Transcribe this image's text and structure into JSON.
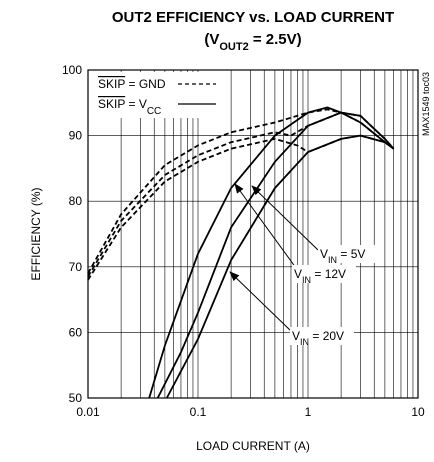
{
  "chart_data": {
    "type": "line",
    "title": "OUT2 EFFICIENCY vs. LOAD CURRENT",
    "subtitle": [
      {
        "text": "(V"
      },
      {
        "text": "OUT2",
        "sub": true
      },
      {
        "text": " = 2.5V)"
      }
    ],
    "x_label": "LOAD CURRENT (A)",
    "y_label": "EFFICIENCY (%)",
    "side_note": "MAX1549 toc03",
    "xscale": "log",
    "xlim": [
      0.01,
      10
    ],
    "xticks": [
      0.01,
      0.1,
      1,
      10
    ],
    "ylim": [
      50,
      100
    ],
    "yticks": [
      50,
      60,
      70,
      80,
      90,
      100
    ],
    "grid": true,
    "legend": "upper left",
    "series": [
      {
        "name": [
          {
            "text": "SKIP",
            "over": true
          },
          {
            "text": " = GND"
          }
        ],
        "dash": true,
        "color": "#000000",
        "lines": [
          {
            "x": [
              0.01,
              0.02,
              0.05,
              0.1,
              0.2,
              0.5,
              1,
              1.5,
              2,
              3,
              5,
              6
            ],
            "values": [
              69,
              78,
              85.5,
              88.5,
              90.5,
              92,
              93.5,
              94,
              93.5,
              92,
              89,
              88
            ]
          },
          {
            "x": [
              0.01,
              0.02,
              0.05,
              0.1,
              0.2,
              0.5,
              0.7,
              1,
              2,
              3,
              5,
              6
            ],
            "values": [
              68.5,
              77,
              84,
              87,
              89,
              90.5,
              90,
              91.5,
              93.5,
              93,
              89.5,
              88
            ]
          },
          {
            "x": [
              0.01,
              0.02,
              0.05,
              0.1,
              0.2,
              0.5,
              0.8,
              1,
              1.2,
              2,
              3,
              5,
              6
            ],
            "values": [
              68,
              76,
              83,
              86,
              88,
              89.5,
              88.5,
              87.5,
              88,
              89.5,
              90,
              89,
              88
            ]
          }
        ]
      },
      {
        "name": [
          {
            "text": "SKIP",
            "over": true
          },
          {
            "text": " = V"
          },
          {
            "text": "CC",
            "sub": true
          }
        ],
        "dash": false,
        "color": "#000000",
        "lines": [
          {
            "x": [
              0.036,
              0.05,
              0.1,
              0.2,
              0.5,
              1,
              1.5,
              2,
              3,
              5,
              6
            ],
            "values": [
              50,
              58,
              72,
              82,
              90,
              93.5,
              94.3,
              93.5,
              92,
              89,
              88
            ]
          },
          {
            "x": [
              0.043,
              0.07,
              0.1,
              0.2,
              0.5,
              1,
              2,
              3,
              5,
              6
            ],
            "values": [
              50,
              57,
              63,
              76,
              86,
              91.5,
              93.5,
              93,
              89.5,
              88
            ]
          },
          {
            "x": [
              0.052,
              0.1,
              0.2,
              0.5,
              1,
              2,
              3,
              5,
              6
            ],
            "values": [
              50,
              59,
              71,
              82,
              87.5,
              89.5,
              90,
              89,
              88
            ]
          }
        ]
      }
    ],
    "annotations": [
      [
        {
          "text": "V"
        },
        {
          "text": "IN",
          "sub": true
        },
        {
          "text": " = 5V"
        }
      ],
      [
        {
          "text": "V"
        },
        {
          "text": "IN",
          "sub": true
        },
        {
          "text": " = 12V"
        }
      ],
      [
        {
          "text": "V"
        },
        {
          "text": "IN",
          "sub": true
        },
        {
          "text": " = 20V"
        }
      ]
    ]
  }
}
